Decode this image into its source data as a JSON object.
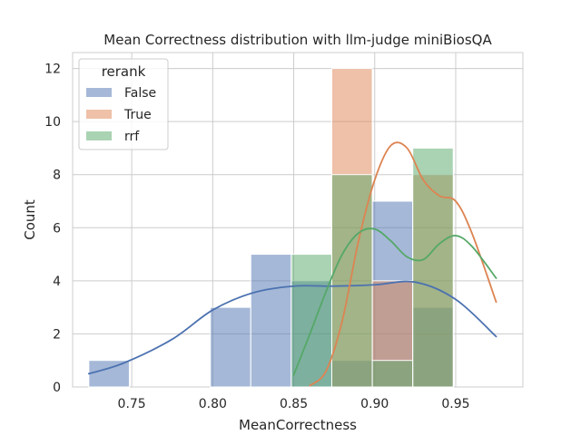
{
  "chart_data": {
    "type": "histogram",
    "title": "Mean Correctness distribution with llm-judge miniBiosQA",
    "xlabel": "MeanCorrectness",
    "ylabel": "Count",
    "xlim": [
      0.7135,
      0.9915
    ],
    "ylim": [
      0,
      12.6
    ],
    "xticks": [
      0.75,
      0.8,
      0.85,
      0.9,
      0.95
    ],
    "xtick_labels": [
      "0.75",
      "0.80",
      "0.85",
      "0.90",
      "0.95"
    ],
    "yticks": [
      0,
      2,
      4,
      6,
      8,
      10,
      12
    ],
    "ytick_labels": [
      "0",
      "2",
      "4",
      "6",
      "8",
      "10",
      "12"
    ],
    "grid": true,
    "legend": {
      "title": "rerank",
      "placement": "top-left"
    },
    "bin_edges": [
      0.7235,
      0.7485,
      0.7735,
      0.7985,
      0.8235,
      0.8485,
      0.8735,
      0.8985,
      0.9235,
      0.9485,
      0.9735
    ],
    "series": [
      {
        "name": "False",
        "color": "#4c72b0",
        "bins": [
          {
            "x0": 0.7235,
            "x1": 0.7485,
            "count": 1
          },
          {
            "x0": 0.7985,
            "x1": 0.8235,
            "count": 3
          },
          {
            "x0": 0.8235,
            "x1": 0.8485,
            "count": 5
          },
          {
            "x0": 0.8485,
            "x1": 0.8735,
            "count": 4
          },
          {
            "x0": 0.8735,
            "x1": 0.8985,
            "count": 1
          },
          {
            "x0": 0.8985,
            "x1": 0.9235,
            "count": 7
          },
          {
            "x0": 0.9235,
            "x1": 0.9485,
            "count": 3
          }
        ],
        "kde": [
          [
            0.7235,
            0.5
          ],
          [
            0.745,
            0.9
          ],
          [
            0.775,
            1.8
          ],
          [
            0.8,
            2.9
          ],
          [
            0.825,
            3.55
          ],
          [
            0.85,
            3.8
          ],
          [
            0.875,
            3.8
          ],
          [
            0.9,
            3.85
          ],
          [
            0.925,
            3.95
          ],
          [
            0.95,
            3.3
          ],
          [
            0.975,
            1.9
          ]
        ]
      },
      {
        "name": "True",
        "color": "#dd8452",
        "bins": [
          {
            "x0": 0.8735,
            "x1": 0.8985,
            "count": 12
          },
          {
            "x0": 0.8985,
            "x1": 0.9235,
            "count": 4
          },
          {
            "x0": 0.9235,
            "x1": 0.9485,
            "count": 8
          }
        ],
        "kde": [
          [
            0.86,
            0.05
          ],
          [
            0.87,
            0.6
          ],
          [
            0.88,
            2.5
          ],
          [
            0.89,
            5.5
          ],
          [
            0.9,
            7.8
          ],
          [
            0.91,
            9.1
          ],
          [
            0.92,
            9.0
          ],
          [
            0.93,
            7.8
          ],
          [
            0.94,
            7.2
          ],
          [
            0.95,
            7.0
          ],
          [
            0.96,
            5.8
          ],
          [
            0.975,
            3.2
          ]
        ]
      },
      {
        "name": "rrf",
        "color": "#55a868",
        "bins": [
          {
            "x0": 0.8485,
            "x1": 0.8735,
            "count": 5
          },
          {
            "x0": 0.8735,
            "x1": 0.8985,
            "count": 8
          },
          {
            "x0": 0.8985,
            "x1": 0.9235,
            "count": 1
          },
          {
            "x0": 0.9235,
            "x1": 0.9485,
            "count": 9
          }
        ],
        "kde": [
          [
            0.85,
            0.45
          ],
          [
            0.86,
            2.0
          ],
          [
            0.87,
            3.6
          ],
          [
            0.88,
            5.0
          ],
          [
            0.89,
            5.8
          ],
          [
            0.9,
            5.95
          ],
          [
            0.91,
            5.5
          ],
          [
            0.92,
            4.9
          ],
          [
            0.93,
            4.8
          ],
          [
            0.94,
            5.4
          ],
          [
            0.95,
            5.7
          ],
          [
            0.96,
            5.3
          ],
          [
            0.975,
            4.1
          ]
        ]
      }
    ]
  }
}
